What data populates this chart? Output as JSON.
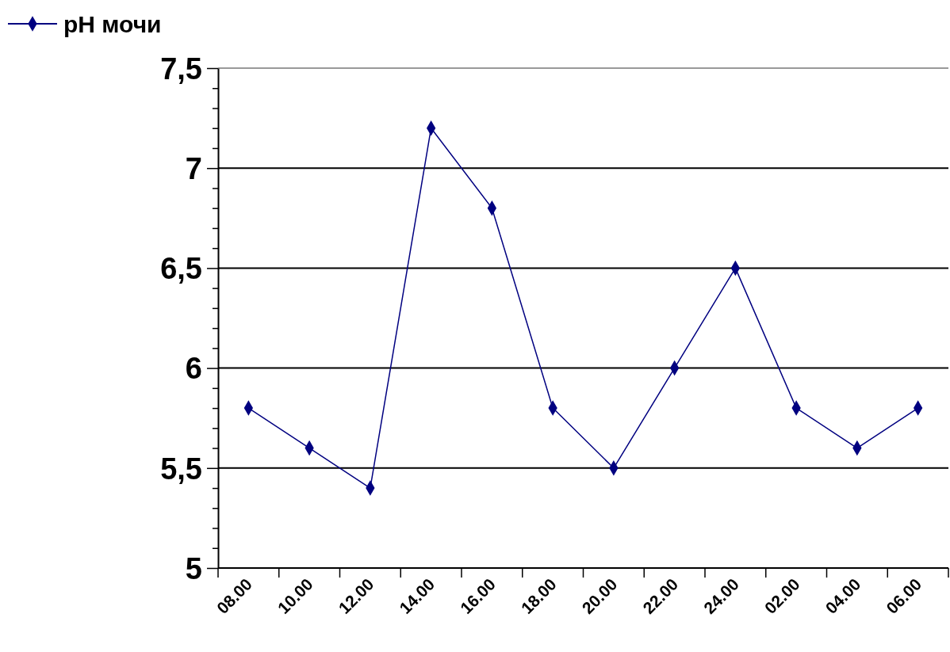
{
  "chart_data": {
    "type": "line",
    "categories": [
      "08.00",
      "10.00",
      "12.00",
      "14.00",
      "16.00",
      "18.00",
      "20.00",
      "22.00",
      "24.00",
      "02.00",
      "04.00",
      "06.00"
    ],
    "series": [
      {
        "name": "pH мочи",
        "color": "#000080",
        "values": [
          5.8,
          5.6,
          5.4,
          7.2,
          6.8,
          5.8,
          5.5,
          6.0,
          6.5,
          5.8,
          5.6,
          5.8
        ]
      }
    ],
    "ylim": [
      5,
      7.5
    ],
    "yticks": [
      5,
      {
        "value": 5.1,
        "label": null
      },
      {
        "value": 5.2,
        "label": null
      },
      {
        "value": 5.3,
        "label": null
      },
      {
        "value": 5.4,
        "label": null
      },
      {
        "value": 5.5,
        "label": "5,5"
      },
      {
        "value": 5.6,
        "label": null
      },
      {
        "value": 5.7,
        "label": null
      },
      {
        "value": 5.8,
        "label": null
      },
      {
        "value": 5.9,
        "label": null
      },
      6,
      {
        "value": 6.1,
        "label": null
      },
      {
        "value": 6.2,
        "label": null
      },
      {
        "value": 6.3,
        "label": null
      },
      {
        "value": 6.4,
        "label": null
      },
      {
        "value": 6.5,
        "label": "6,5"
      },
      {
        "value": 6.6,
        "label": null
      },
      {
        "value": 6.7,
        "label": null
      },
      {
        "value": 6.8,
        "label": null
      },
      {
        "value": 6.9,
        "label": null
      },
      7,
      {
        "value": 7.1,
        "label": null
      },
      {
        "value": 7.2,
        "label": null
      },
      {
        "value": 7.3,
        "label": null
      },
      {
        "value": 7.4,
        "label": null
      },
      {
        "value": 7.5,
        "label": "7,5"
      }
    ],
    "grid": "y",
    "legend": "top left",
    "marker": "diamond",
    "line_style": "solid"
  }
}
